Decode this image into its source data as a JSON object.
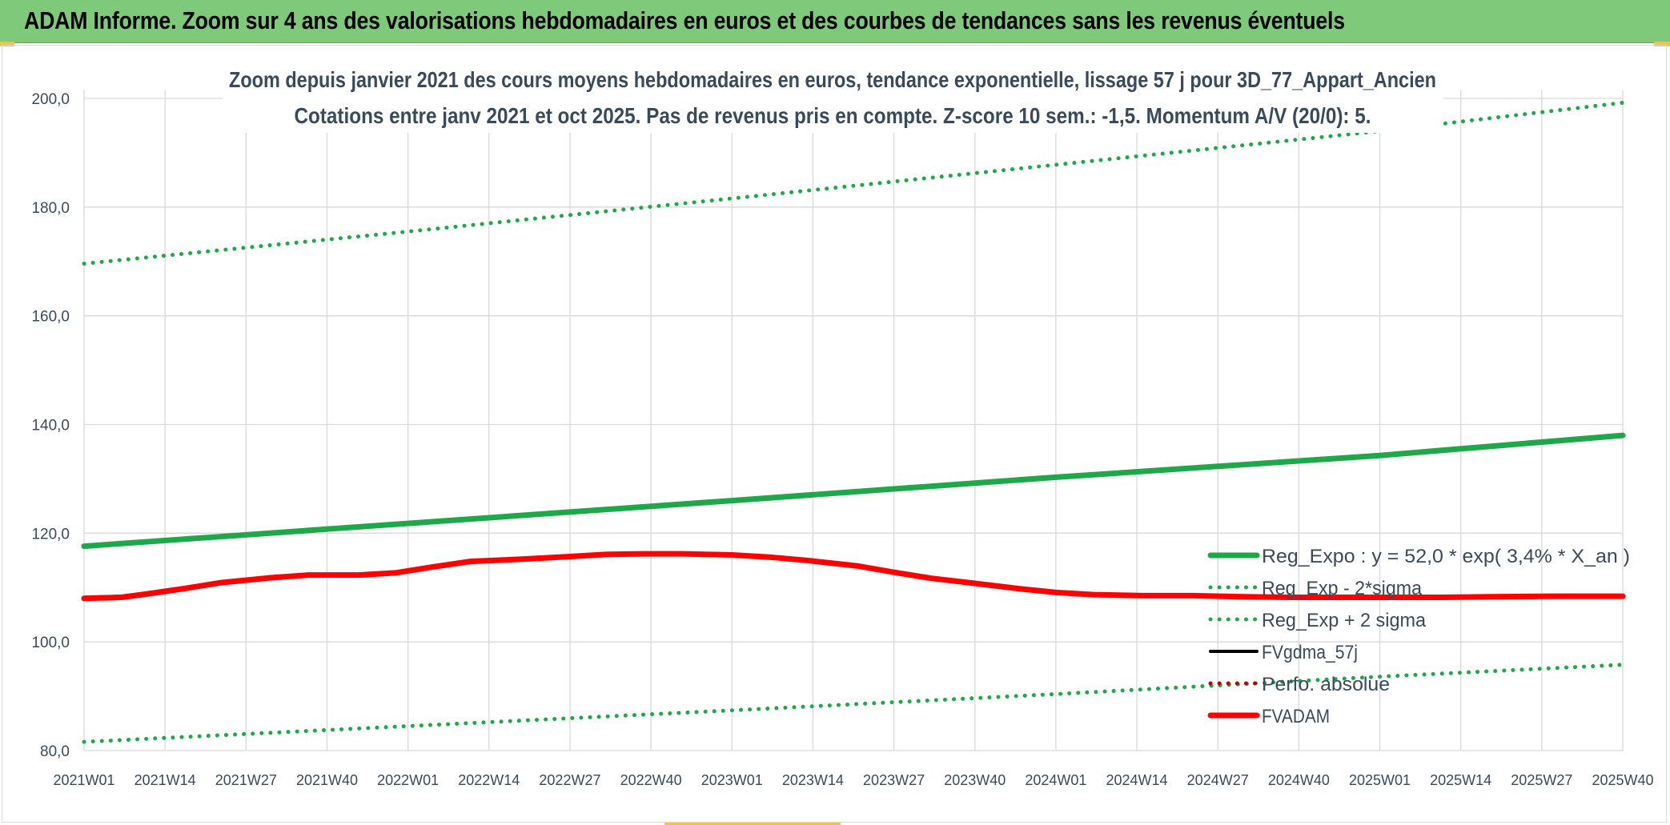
{
  "banner": {
    "title": "ADAM Informe. Zoom sur 4 ans des valorisations hebdomadaires en euros et des courbes de tendances sans les revenus éventuels"
  },
  "colors": {
    "banner_bg": "#7ec97a",
    "accent": "#e8c84a",
    "trend": "#1fa84a",
    "smoothed": "#000000",
    "perfo": "#c00000",
    "fvadam": "#ff0000",
    "gridline": "#d9d9d9",
    "text": "#3a4a5a"
  },
  "chart_data": {
    "type": "line",
    "title": "Zoom depuis janvier 2021 des cours moyens hebdomadaires en euros, tendance exponentielle, lissage 57 j pour 3D_77_Appart_Ancien",
    "subtitle": "Cotations entre janv 2021 et oct 2025. Pas de revenus pris en compte. Z-score 10 sem.: -1,5. Momentum A/V (20/0): 5.",
    "xlabel": "",
    "ylabel": "",
    "x_range": [
      0,
      247
    ],
    "ylim": [
      80,
      200
    ],
    "y_ticks": [
      "80,0",
      "100,0",
      "120,0",
      "140,0",
      "160,0",
      "180,0",
      "200,0"
    ],
    "x_ticks": [
      {
        "x": 0,
        "label": "2021W01"
      },
      {
        "x": 13,
        "label": "2021W14"
      },
      {
        "x": 26,
        "label": "2021W27"
      },
      {
        "x": 39,
        "label": "2021W40"
      },
      {
        "x": 52,
        "label": "2022W01"
      },
      {
        "x": 65,
        "label": "2022W14"
      },
      {
        "x": 78,
        "label": "2022W27"
      },
      {
        "x": 91,
        "label": "2022W40"
      },
      {
        "x": 104,
        "label": "2023W01"
      },
      {
        "x": 117,
        "label": "2023W14"
      },
      {
        "x": 130,
        "label": "2023W27"
      },
      {
        "x": 143,
        "label": "2023W40"
      },
      {
        "x": 156,
        "label": "2024W01"
      },
      {
        "x": 169,
        "label": "2024W14"
      },
      {
        "x": 182,
        "label": "2024W27"
      },
      {
        "x": 195,
        "label": "2024W40"
      },
      {
        "x": 208,
        "label": "2025W01"
      },
      {
        "x": 221,
        "label": "2025W14"
      },
      {
        "x": 234,
        "label": "2025W27"
      },
      {
        "x": 247,
        "label": "2025W40"
      }
    ],
    "grid": true,
    "legend_position": "right",
    "series": [
      {
        "name": "Reg_Expo : y = 52,0 * exp( 3,4% *  X_an )",
        "style": "solid-thick",
        "color": "#1fa84a",
        "points": [
          [
            0,
            117.6
          ],
          [
            52,
            121.8
          ],
          [
            104,
            126.0
          ],
          [
            156,
            130.3
          ],
          [
            208,
            134.3
          ],
          [
            247,
            138.0
          ]
        ]
      },
      {
        "name": "Reg_Exp - 2*sigma",
        "style": "dotted",
        "color": "#1fa84a",
        "points": [
          [
            0,
            81.6
          ],
          [
            52,
            84.5
          ],
          [
            104,
            87.4
          ],
          [
            156,
            90.4
          ],
          [
            208,
            93.6
          ],
          [
            247,
            95.8
          ]
        ]
      },
      {
        "name": "Reg_Exp + 2 sigma",
        "style": "dotted",
        "color": "#1fa84a",
        "points": [
          [
            0,
            169.6
          ],
          [
            52,
            175.5
          ],
          [
            104,
            181.6
          ],
          [
            156,
            187.8
          ],
          [
            208,
            194.0
          ],
          [
            247,
            199.2
          ]
        ]
      },
      {
        "name": "FVgdma_57j",
        "style": "solid",
        "color": "#000000",
        "points": [
          [
            0,
            108.2
          ],
          [
            6,
            108.4
          ],
          [
            10,
            109.0
          ],
          [
            16,
            110.0
          ],
          [
            22,
            111.0
          ],
          [
            30,
            111.9
          ],
          [
            36,
            112.4
          ],
          [
            44,
            112.4
          ],
          [
            50,
            112.8
          ],
          [
            56,
            113.9
          ],
          [
            62,
            114.9
          ],
          [
            70,
            115.3
          ],
          [
            78,
            115.8
          ],
          [
            84,
            116.1
          ],
          [
            90,
            116.2
          ],
          [
            96,
            116.2
          ],
          [
            104,
            116.0
          ],
          [
            110,
            115.6
          ],
          [
            116,
            115.0
          ],
          [
            124,
            114.0
          ],
          [
            130,
            112.8
          ],
          [
            136,
            111.8
          ],
          [
            142,
            111.0
          ],
          [
            150,
            109.9
          ],
          [
            156,
            109.2
          ],
          [
            162,
            108.8
          ],
          [
            170,
            108.5
          ],
          [
            178,
            108.5
          ],
          [
            186,
            108.4
          ],
          [
            194,
            108.3
          ],
          [
            202,
            108.3
          ],
          [
            210,
            108.3
          ],
          [
            218,
            108.3
          ],
          [
            226,
            108.4
          ],
          [
            236,
            108.4
          ],
          [
            247,
            108.4
          ]
        ]
      },
      {
        "name": "Perfo. absolue",
        "style": "dotted",
        "color": "#c00000",
        "points": [
          [
            0,
            108.0
          ],
          [
            6,
            108.2
          ],
          [
            10,
            108.8
          ],
          [
            16,
            109.8
          ],
          [
            22,
            110.9
          ],
          [
            30,
            111.8
          ],
          [
            36,
            112.3
          ],
          [
            44,
            112.3
          ],
          [
            50,
            112.7
          ],
          [
            56,
            113.8
          ],
          [
            62,
            114.8
          ],
          [
            70,
            115.2
          ],
          [
            78,
            115.7
          ],
          [
            84,
            116.1
          ],
          [
            90,
            116.2
          ],
          [
            96,
            116.2
          ],
          [
            104,
            116.0
          ],
          [
            110,
            115.6
          ],
          [
            116,
            115.0
          ],
          [
            124,
            114.0
          ],
          [
            130,
            112.8
          ],
          [
            136,
            111.7
          ],
          [
            142,
            110.9
          ],
          [
            150,
            109.8
          ],
          [
            156,
            109.1
          ],
          [
            162,
            108.7
          ],
          [
            170,
            108.5
          ],
          [
            178,
            108.5
          ],
          [
            186,
            108.3
          ],
          [
            194,
            108.2
          ],
          [
            202,
            108.2
          ],
          [
            210,
            108.2
          ],
          [
            218,
            108.2
          ],
          [
            226,
            108.3
          ],
          [
            236,
            108.4
          ],
          [
            247,
            108.4
          ]
        ]
      },
      {
        "name": "FVADAM",
        "style": "solid-thick",
        "color": "#ff0000",
        "points": [
          [
            0,
            108.0
          ],
          [
            6,
            108.2
          ],
          [
            10,
            108.8
          ],
          [
            16,
            109.8
          ],
          [
            22,
            110.9
          ],
          [
            30,
            111.8
          ],
          [
            36,
            112.3
          ],
          [
            44,
            112.3
          ],
          [
            50,
            112.7
          ],
          [
            56,
            113.8
          ],
          [
            62,
            114.8
          ],
          [
            70,
            115.2
          ],
          [
            78,
            115.7
          ],
          [
            84,
            116.1
          ],
          [
            90,
            116.2
          ],
          [
            96,
            116.2
          ],
          [
            104,
            116.0
          ],
          [
            110,
            115.6
          ],
          [
            116,
            115.0
          ],
          [
            124,
            114.0
          ],
          [
            130,
            112.8
          ],
          [
            136,
            111.7
          ],
          [
            142,
            110.9
          ],
          [
            150,
            109.8
          ],
          [
            156,
            109.1
          ],
          [
            162,
            108.7
          ],
          [
            170,
            108.5
          ],
          [
            178,
            108.5
          ],
          [
            186,
            108.3
          ],
          [
            194,
            108.2
          ],
          [
            202,
            108.2
          ],
          [
            210,
            108.2
          ],
          [
            218,
            108.2
          ],
          [
            226,
            108.3
          ],
          [
            236,
            108.4
          ],
          [
            247,
            108.4
          ]
        ]
      }
    ]
  }
}
